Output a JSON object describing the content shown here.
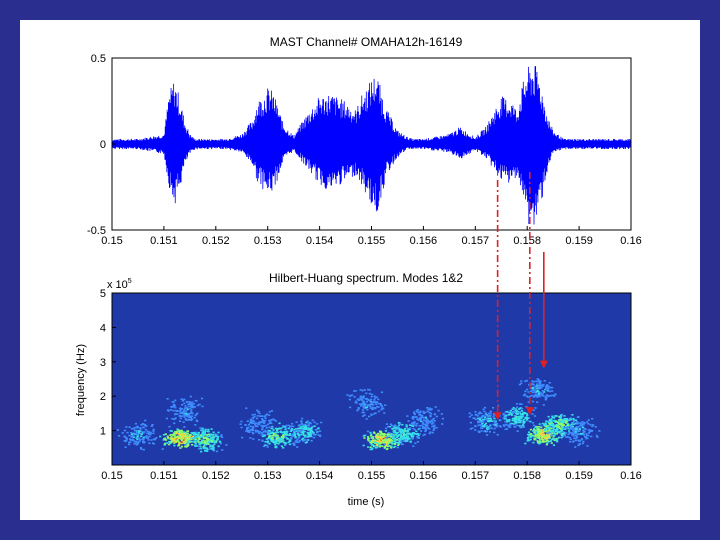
{
  "chart_data": [
    {
      "type": "line",
      "title": "MAST Channel# OMAHA12h-16149",
      "xlabel": "",
      "ylabel": "",
      "xlim": [
        0.15,
        0.16
      ],
      "ylim": [
        -0.5,
        0.5
      ],
      "x_ticks": [
        "0.15",
        "0.151",
        "0.152",
        "0.153",
        "0.154",
        "0.155",
        "0.156",
        "0.157",
        "0.158",
        "0.159",
        "0.16"
      ],
      "y_ticks": [
        "-0.5",
        "0",
        "0.5"
      ],
      "y_tick_values": [
        -0.5,
        0,
        0.5
      ],
      "grid": false,
      "series_color": "#0000ff",
      "envelope": {
        "x": [
          0.15,
          0.1505,
          0.151,
          0.1511,
          0.1512,
          0.1513,
          0.1514,
          0.1515,
          0.1516,
          0.1518,
          0.152,
          0.1522,
          0.1525,
          0.1527,
          0.1528,
          0.153,
          0.1531,
          0.1532,
          0.1533,
          0.1535,
          0.1536,
          0.1538,
          0.154,
          0.1542,
          0.1545,
          0.1547,
          0.1548,
          0.155,
          0.1551,
          0.1552,
          0.1553,
          0.1555,
          0.1557,
          0.1558,
          0.156,
          0.1562,
          0.1565,
          0.1567,
          0.157,
          0.1572,
          0.1575,
          0.1577,
          0.1578,
          0.1579,
          0.158,
          0.1581,
          0.1582,
          0.1583,
          0.1584,
          0.1585,
          0.1587,
          0.159,
          0.1595,
          0.16
        ],
        "upper": [
          0.03,
          0.03,
          0.06,
          0.3,
          0.38,
          0.28,
          0.14,
          0.06,
          0.03,
          0.03,
          0.03,
          0.03,
          0.06,
          0.14,
          0.25,
          0.33,
          0.31,
          0.22,
          0.12,
          0.05,
          0.1,
          0.2,
          0.28,
          0.3,
          0.25,
          0.2,
          0.28,
          0.38,
          0.42,
          0.3,
          0.2,
          0.08,
          0.04,
          0.03,
          0.03,
          0.04,
          0.06,
          0.1,
          0.04,
          0.1,
          0.28,
          0.26,
          0.2,
          0.34,
          0.44,
          0.48,
          0.44,
          0.3,
          0.16,
          0.08,
          0.03,
          0.03,
          0.03,
          0.03
        ],
        "lower": [
          -0.03,
          -0.03,
          -0.06,
          -0.25,
          -0.36,
          -0.28,
          -0.13,
          -0.06,
          -0.03,
          -0.03,
          -0.03,
          -0.03,
          -0.05,
          -0.12,
          -0.22,
          -0.3,
          -0.28,
          -0.2,
          -0.1,
          -0.04,
          -0.08,
          -0.16,
          -0.24,
          -0.28,
          -0.22,
          -0.18,
          -0.24,
          -0.36,
          -0.42,
          -0.3,
          -0.18,
          -0.08,
          -0.03,
          -0.03,
          -0.03,
          -0.04,
          -0.05,
          -0.09,
          -0.04,
          -0.08,
          -0.22,
          -0.24,
          -0.18,
          -0.3,
          -0.46,
          -0.52,
          -0.44,
          -0.3,
          -0.14,
          -0.06,
          -0.03,
          -0.03,
          -0.03,
          -0.03
        ]
      }
    },
    {
      "type": "heatmap",
      "title": "Hilbert-Huang spectrum. Modes 1&2",
      "xlabel": "time (s)",
      "ylabel": "frequency (Hz)",
      "y_multiplier": "x 10",
      "y_multiplier_exponent": "5",
      "xlim": [
        0.15,
        0.16
      ],
      "ylim": [
        0,
        5
      ],
      "x_ticks": [
        "0.15",
        "0.151",
        "0.152",
        "0.153",
        "0.154",
        "0.155",
        "0.156",
        "0.157",
        "0.158",
        "0.159",
        "0.16"
      ],
      "y_ticks": [
        "1",
        "2",
        "3",
        "4",
        "5"
      ],
      "y_tick_values": [
        1,
        2,
        3,
        4,
        5
      ],
      "background_color": "#1f3aa8",
      "clusters": [
        {
          "t": 0.1513,
          "f": 0.8,
          "intensity": 1.0
        },
        {
          "t": 0.1518,
          "f": 0.75,
          "intensity": 0.7
        },
        {
          "t": 0.1505,
          "f": 0.9,
          "intensity": 0.4
        },
        {
          "t": 0.1514,
          "f": 1.6,
          "intensity": 0.35
        },
        {
          "t": 0.1532,
          "f": 0.85,
          "intensity": 0.7
        },
        {
          "t": 0.1537,
          "f": 1.0,
          "intensity": 0.5
        },
        {
          "t": 0.1528,
          "f": 1.2,
          "intensity": 0.3
        },
        {
          "t": 0.1552,
          "f": 0.75,
          "intensity": 1.0
        },
        {
          "t": 0.1556,
          "f": 0.95,
          "intensity": 0.6
        },
        {
          "t": 0.1549,
          "f": 1.8,
          "intensity": 0.35
        },
        {
          "t": 0.156,
          "f": 1.3,
          "intensity": 0.35
        },
        {
          "t": 0.1572,
          "f": 1.3,
          "intensity": 0.45
        },
        {
          "t": 0.1578,
          "f": 1.4,
          "intensity": 0.55
        },
        {
          "t": 0.1583,
          "f": 0.9,
          "intensity": 0.9
        },
        {
          "t": 0.1586,
          "f": 1.2,
          "intensity": 0.7
        },
        {
          "t": 0.1582,
          "f": 2.2,
          "intensity": 0.4
        },
        {
          "t": 0.159,
          "f": 1.0,
          "intensity": 0.4
        }
      ]
    }
  ],
  "annotations": {
    "dashdot_arrows_x": [
      0.15743,
      0.15805
    ],
    "solid_arrow_x": 0.15832,
    "arrow_end_freq": [
      1.3,
      1.45,
      2.8
    ],
    "arrow_color": "#e02020"
  }
}
